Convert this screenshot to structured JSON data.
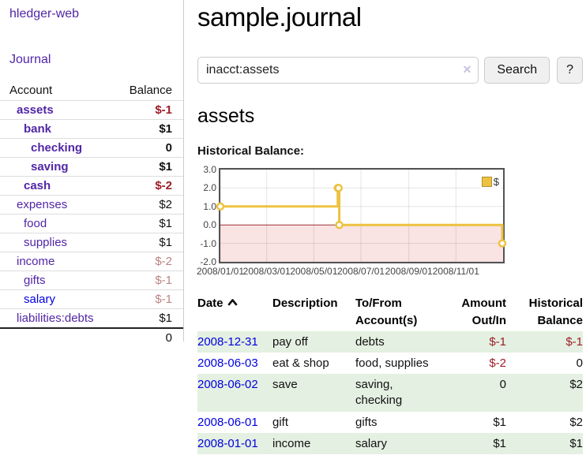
{
  "colors": {
    "accent_purple": "#5126a6",
    "link_blue": "#0000e0",
    "negative_red": "#9d1d27",
    "negative_muted_red": "#bb8383",
    "stripe_green": "#e4f0e1",
    "series_yellow": "#EDC240"
  },
  "sidebar": {
    "brand": "hledger-web",
    "journal_link": "Journal",
    "accounts_table": {
      "headers": [
        "Account",
        "Balance"
      ],
      "rows": [
        {
          "name": "assets",
          "balance": "$-1",
          "level": 1,
          "bold": true,
          "name_tone": "purple",
          "balance_tone": "negative"
        },
        {
          "name": "bank",
          "balance": "$1",
          "level": 2,
          "bold": true,
          "name_tone": "purple",
          "balance_tone": "normal"
        },
        {
          "name": "checking",
          "balance": "0",
          "level": 3,
          "bold": true,
          "name_tone": "purple",
          "balance_tone": "normal"
        },
        {
          "name": "saving",
          "balance": "$1",
          "level": 3,
          "bold": true,
          "name_tone": "purple",
          "balance_tone": "normal"
        },
        {
          "name": "cash",
          "balance": "$-2",
          "level": 2,
          "bold": true,
          "name_tone": "purple",
          "balance_tone": "negative"
        },
        {
          "name": "expenses",
          "balance": "$2",
          "level": 1,
          "bold": false,
          "name_tone": "purple",
          "balance_tone": "normal"
        },
        {
          "name": "food",
          "balance": "$1",
          "level": 2,
          "bold": false,
          "name_tone": "purple",
          "balance_tone": "normal"
        },
        {
          "name": "supplies",
          "balance": "$1",
          "level": 2,
          "bold": false,
          "name_tone": "purple",
          "balance_tone": "normal"
        },
        {
          "name": "income",
          "balance": "$-2",
          "level": 1,
          "bold": false,
          "name_tone": "purple",
          "balance_tone": "negative-muted"
        },
        {
          "name": "gifts",
          "balance": "$-1",
          "level": 2,
          "bold": false,
          "name_tone": "purple",
          "balance_tone": "negative-muted"
        },
        {
          "name": "salary",
          "balance": "$-1",
          "level": 2,
          "bold": false,
          "name_tone": "blue",
          "balance_tone": "negative-muted"
        },
        {
          "name": "liabilities:debts",
          "balance": "$1",
          "level": 1,
          "bold": false,
          "name_tone": "purple",
          "balance_tone": "normal"
        }
      ],
      "total": "0"
    }
  },
  "main": {
    "title": "sample.journal",
    "search": {
      "value": "inacct:assets",
      "clear_icon": "✕",
      "button_label": "Search",
      "help_label": "?"
    },
    "account_heading": "assets",
    "chart_label": "Historical Balance:"
  },
  "chart_data": {
    "type": "line",
    "step": true,
    "title": "Historical Balance:",
    "series": [
      {
        "name": "$",
        "color": "#EDC240",
        "points": [
          [
            "2008/01/01",
            1
          ],
          [
            "2008/06/01",
            2
          ],
          [
            "2008/06/02",
            2
          ],
          [
            "2008/06/03",
            0
          ],
          [
            "2008/12/31",
            -1
          ]
        ]
      }
    ],
    "xrange": [
      "2008/01/01",
      "2009/01/01"
    ],
    "ylim": [
      -2,
      3
    ],
    "yticks": [
      3,
      2,
      1,
      0,
      -1,
      -2
    ],
    "ytick_labels": [
      "3.0",
      "2.0",
      "1.0",
      "0.0",
      "-1.0",
      "-2.0"
    ],
    "xticks": [
      "2008/01/01",
      "2008/03/01",
      "2008/05/01",
      "2008/07/01",
      "2008/09/01",
      "2008/11/01"
    ],
    "xtick_labels": [
      "2008/01/01",
      "2008/03/01",
      "2008/05/01",
      "2008/07/01",
      "2008/09/01",
      "2008/11/01"
    ],
    "grid": true,
    "legend": {
      "position": "top-right",
      "label": "$"
    },
    "negative_region_color": "#fae3e3",
    "zero_line_color": "#9e3132"
  },
  "transactions": {
    "headers": [
      "Date",
      "Description",
      "To/From Account(s)",
      "Amount Out/In",
      "Historical Balance"
    ],
    "rows": [
      {
        "date": "2008-12-31",
        "description": "pay off",
        "accounts": "debts",
        "amount": "$-1",
        "balance": "$-1",
        "amount_negative": true,
        "balance_negative": true
      },
      {
        "date": "2008-06-03",
        "description": "eat & shop",
        "accounts": "food, supplies",
        "amount": "$-2",
        "balance": "0",
        "amount_negative": true,
        "balance_negative": false
      },
      {
        "date": "2008-06-02",
        "description": "save",
        "accounts": "saving, checking",
        "amount": "0",
        "balance": "$2",
        "amount_negative": false,
        "balance_negative": false
      },
      {
        "date": "2008-06-01",
        "description": "gift",
        "accounts": "gifts",
        "amount": "$1",
        "balance": "$2",
        "amount_negative": false,
        "balance_negative": false
      },
      {
        "date": "2008-01-01",
        "description": "income",
        "accounts": "salary",
        "amount": "$1",
        "balance": "$1",
        "amount_negative": false,
        "balance_negative": false
      }
    ]
  }
}
